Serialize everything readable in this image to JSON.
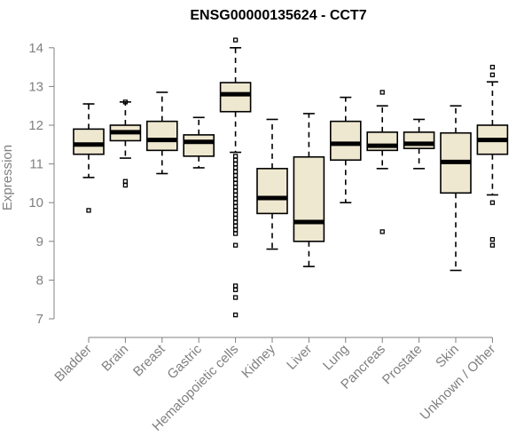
{
  "chart_data": {
    "type": "boxplot",
    "title": "ENSG00000135624 - CCT7",
    "ylabel": "Expression",
    "xlabel": "",
    "ylim": [
      7,
      14
    ],
    "yticks": [
      7,
      8,
      9,
      10,
      11,
      12,
      13,
      14
    ],
    "categories": [
      "Bladder",
      "Brain",
      "Breast",
      "Gastric",
      "Hematopoietic cells",
      "Kidney",
      "Liver",
      "Lung",
      "Pancreas",
      "Prostate",
      "Skin",
      "Unknown / Other"
    ],
    "boxes": [
      {
        "min": 10.65,
        "q1": 11.25,
        "median": 11.5,
        "q3": 11.9,
        "max": 12.55,
        "outliers": [
          9.8
        ]
      },
      {
        "min": 11.15,
        "q1": 11.6,
        "median": 11.82,
        "q3": 12.0,
        "max": 12.6,
        "outliers": [
          10.45,
          10.55,
          12.6
        ]
      },
      {
        "min": 10.75,
        "q1": 11.35,
        "median": 11.62,
        "q3": 12.1,
        "max": 12.85,
        "outliers": []
      },
      {
        "min": 10.9,
        "q1": 11.2,
        "median": 11.57,
        "q3": 11.75,
        "max": 12.2,
        "outliers": []
      },
      {
        "min": 11.3,
        "q1": 12.35,
        "median": 12.8,
        "q3": 13.1,
        "max": 14.0,
        "outliers": [
          14.2,
          11.2,
          11.1,
          11.0,
          10.9,
          10.8,
          10.7,
          10.6,
          10.5,
          10.4,
          10.3,
          10.2,
          10.1,
          10.0,
          9.9,
          9.8,
          9.7,
          9.6,
          9.5,
          9.4,
          9.3,
          9.2,
          8.9,
          7.85,
          7.75,
          7.55,
          7.1
        ]
      },
      {
        "min": 8.8,
        "q1": 9.72,
        "median": 10.12,
        "q3": 10.88,
        "max": 12.15,
        "outliers": []
      },
      {
        "min": 8.35,
        "q1": 9.0,
        "median": 9.5,
        "q3": 11.18,
        "max": 12.3,
        "outliers": []
      },
      {
        "min": 10.0,
        "q1": 11.1,
        "median": 11.52,
        "q3": 12.1,
        "max": 12.72,
        "outliers": []
      },
      {
        "min": 10.88,
        "q1": 11.35,
        "median": 11.47,
        "q3": 11.82,
        "max": 12.5,
        "outliers": [
          12.85,
          9.25
        ]
      },
      {
        "min": 10.88,
        "q1": 11.4,
        "median": 11.52,
        "q3": 11.82,
        "max": 12.15,
        "outliers": []
      },
      {
        "min": 8.25,
        "q1": 10.25,
        "median": 11.05,
        "q3": 11.8,
        "max": 12.5,
        "outliers": []
      },
      {
        "min": 10.2,
        "q1": 11.25,
        "median": 11.62,
        "q3": 12.0,
        "max": 13.12,
        "outliers": [
          13.5,
          13.3,
          10.0,
          9.05,
          8.9
        ]
      }
    ],
    "colors": {
      "box_fill": "#efe8d0",
      "box_stroke": "#000000",
      "axis": "#808080",
      "text": "#808080"
    }
  }
}
